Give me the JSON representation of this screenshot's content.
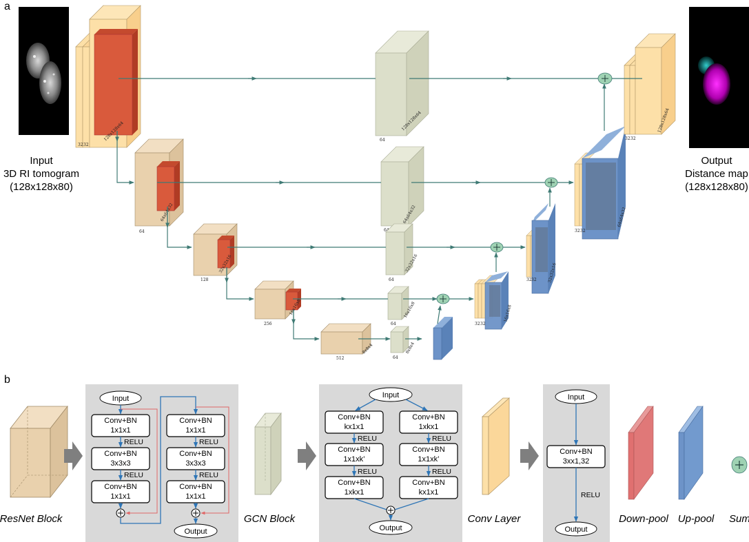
{
  "panel_a": {
    "letter": "a",
    "input_label": [
      "Input",
      "3D RI tomogram",
      "(128x128x80)"
    ],
    "output_label": [
      "Output",
      "Distance map",
      "(128x128x80)"
    ],
    "dims": {
      "e1": "128x128x64",
      "e1c": "32",
      "e1c2": "32",
      "e2": "64x64x32",
      "e2c": "64",
      "e3": "32x32x16",
      "e3c": "128",
      "e4": "16x16x8",
      "e4c": "256",
      "bn": "8x8x4",
      "bnc": "512",
      "g1": "128x128x64",
      "g1c": "64",
      "g2": "64x64x32",
      "g2c": "64",
      "g3": "32x32x16",
      "g3c": "64",
      "g4": "16x16x8",
      "g4c": "64",
      "g5": "8x8x4",
      "g5c": "64",
      "d1": "128x128x64",
      "d1c": "32",
      "d1c2": "32",
      "d2": "64x64x32",
      "d2c": "32",
      "d2c2": "32",
      "d3": "32x32x16",
      "d3c": "32",
      "d3c2": "32",
      "d4": "16x16x8",
      "d4c": "32",
      "d4c2": "32"
    }
  },
  "panel_b": {
    "letter": "b",
    "resnet": {
      "legend": "ResNet Block",
      "input": "Input",
      "output": "Output",
      "col1": [
        [
          "Conv+BN",
          "1x1x1"
        ],
        [
          "Conv+BN",
          "3x3x3"
        ],
        [
          "Conv+BN",
          "1x1x1"
        ]
      ],
      "col2": [
        [
          "Conv+BN",
          "1x1x1"
        ],
        [
          "Conv+BN",
          "3x3x3"
        ],
        [
          "Conv+BN",
          "1x1x1"
        ]
      ],
      "relu": "RELU"
    },
    "gcn": {
      "legend": "GCN Block",
      "input": "Input",
      "output": "Output",
      "col1": [
        [
          "Conv+BN",
          "kx1x1"
        ],
        [
          "Conv+BN",
          "1x1xk’"
        ],
        [
          "Conv+BN",
          "1xkx1"
        ]
      ],
      "col2": [
        [
          "Conv+BN",
          "1xkx1"
        ],
        [
          "Conv+BN",
          "1x1xk’"
        ],
        [
          "Conv+BN",
          "kx1x1"
        ]
      ],
      "relu": "RELU"
    },
    "conv": {
      "legend": "Conv Layer",
      "input": "Input",
      "box": [
        "Conv+BN",
        "3xx1,32"
      ],
      "relu": "RELU",
      "output": "Output"
    },
    "down_pool": "Down-pool",
    "up_pool": "Up-pool",
    "sum": "Sum"
  },
  "colors": {
    "resnet": "#e9d1ad",
    "gcn": "#dcdfca",
    "conv": "#fde0a8",
    "down": "#d95a3c",
    "up": "#6d93c8",
    "arrow": "#3f7a74",
    "panel_bg": "#d9d9d9",
    "flow": "#2e75b6",
    "skip": "#e06666"
  }
}
